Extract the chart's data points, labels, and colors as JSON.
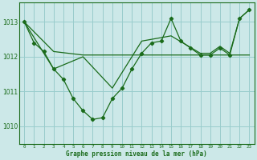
{
  "title": "Graphe pression niveau de la mer (hPa)",
  "background_color": "#cce8e8",
  "grid_color": "#99cccc",
  "line_color": "#1a6b1a",
  "xlim": [
    -0.5,
    23.5
  ],
  "ylim": [
    1009.5,
    1013.55
  ],
  "yticks": [
    1010,
    1011,
    1012,
    1013
  ],
  "xticks": [
    0,
    1,
    2,
    3,
    4,
    5,
    6,
    7,
    8,
    9,
    10,
    11,
    12,
    13,
    14,
    15,
    16,
    17,
    18,
    19,
    20,
    21,
    22,
    23
  ],
  "series1_x": [
    0,
    1,
    2,
    3,
    4,
    5,
    6,
    7,
    8,
    9,
    10,
    11,
    12,
    13,
    14,
    15,
    16,
    17,
    18,
    19,
    20,
    21,
    22,
    23
  ],
  "series1_y": [
    1013.0,
    1012.4,
    1012.15,
    1011.65,
    1011.35,
    1010.8,
    1010.45,
    1010.2,
    1010.25,
    1010.8,
    1011.1,
    1011.65,
    1012.1,
    1012.4,
    1012.45,
    1013.1,
    1012.45,
    1012.25,
    1012.05,
    1012.05,
    1012.25,
    1012.05,
    1013.1,
    1013.35
  ],
  "series2_x": [
    0,
    3,
    6,
    9,
    12,
    15,
    18,
    21,
    23
  ],
  "series2_y": [
    1013.0,
    1012.15,
    1012.05,
    1012.05,
    1012.05,
    1012.05,
    1012.05,
    1012.05,
    1012.05
  ],
  "series3_x": [
    0,
    3,
    6,
    9,
    12,
    15,
    18,
    19,
    20,
    21,
    22,
    23
  ],
  "series3_y": [
    1013.0,
    1011.65,
    1012.0,
    1011.1,
    1012.45,
    1012.6,
    1012.1,
    1012.1,
    1012.3,
    1012.1,
    1013.1,
    1013.35
  ],
  "figsize": [
    3.2,
    2.0
  ],
  "dpi": 100
}
